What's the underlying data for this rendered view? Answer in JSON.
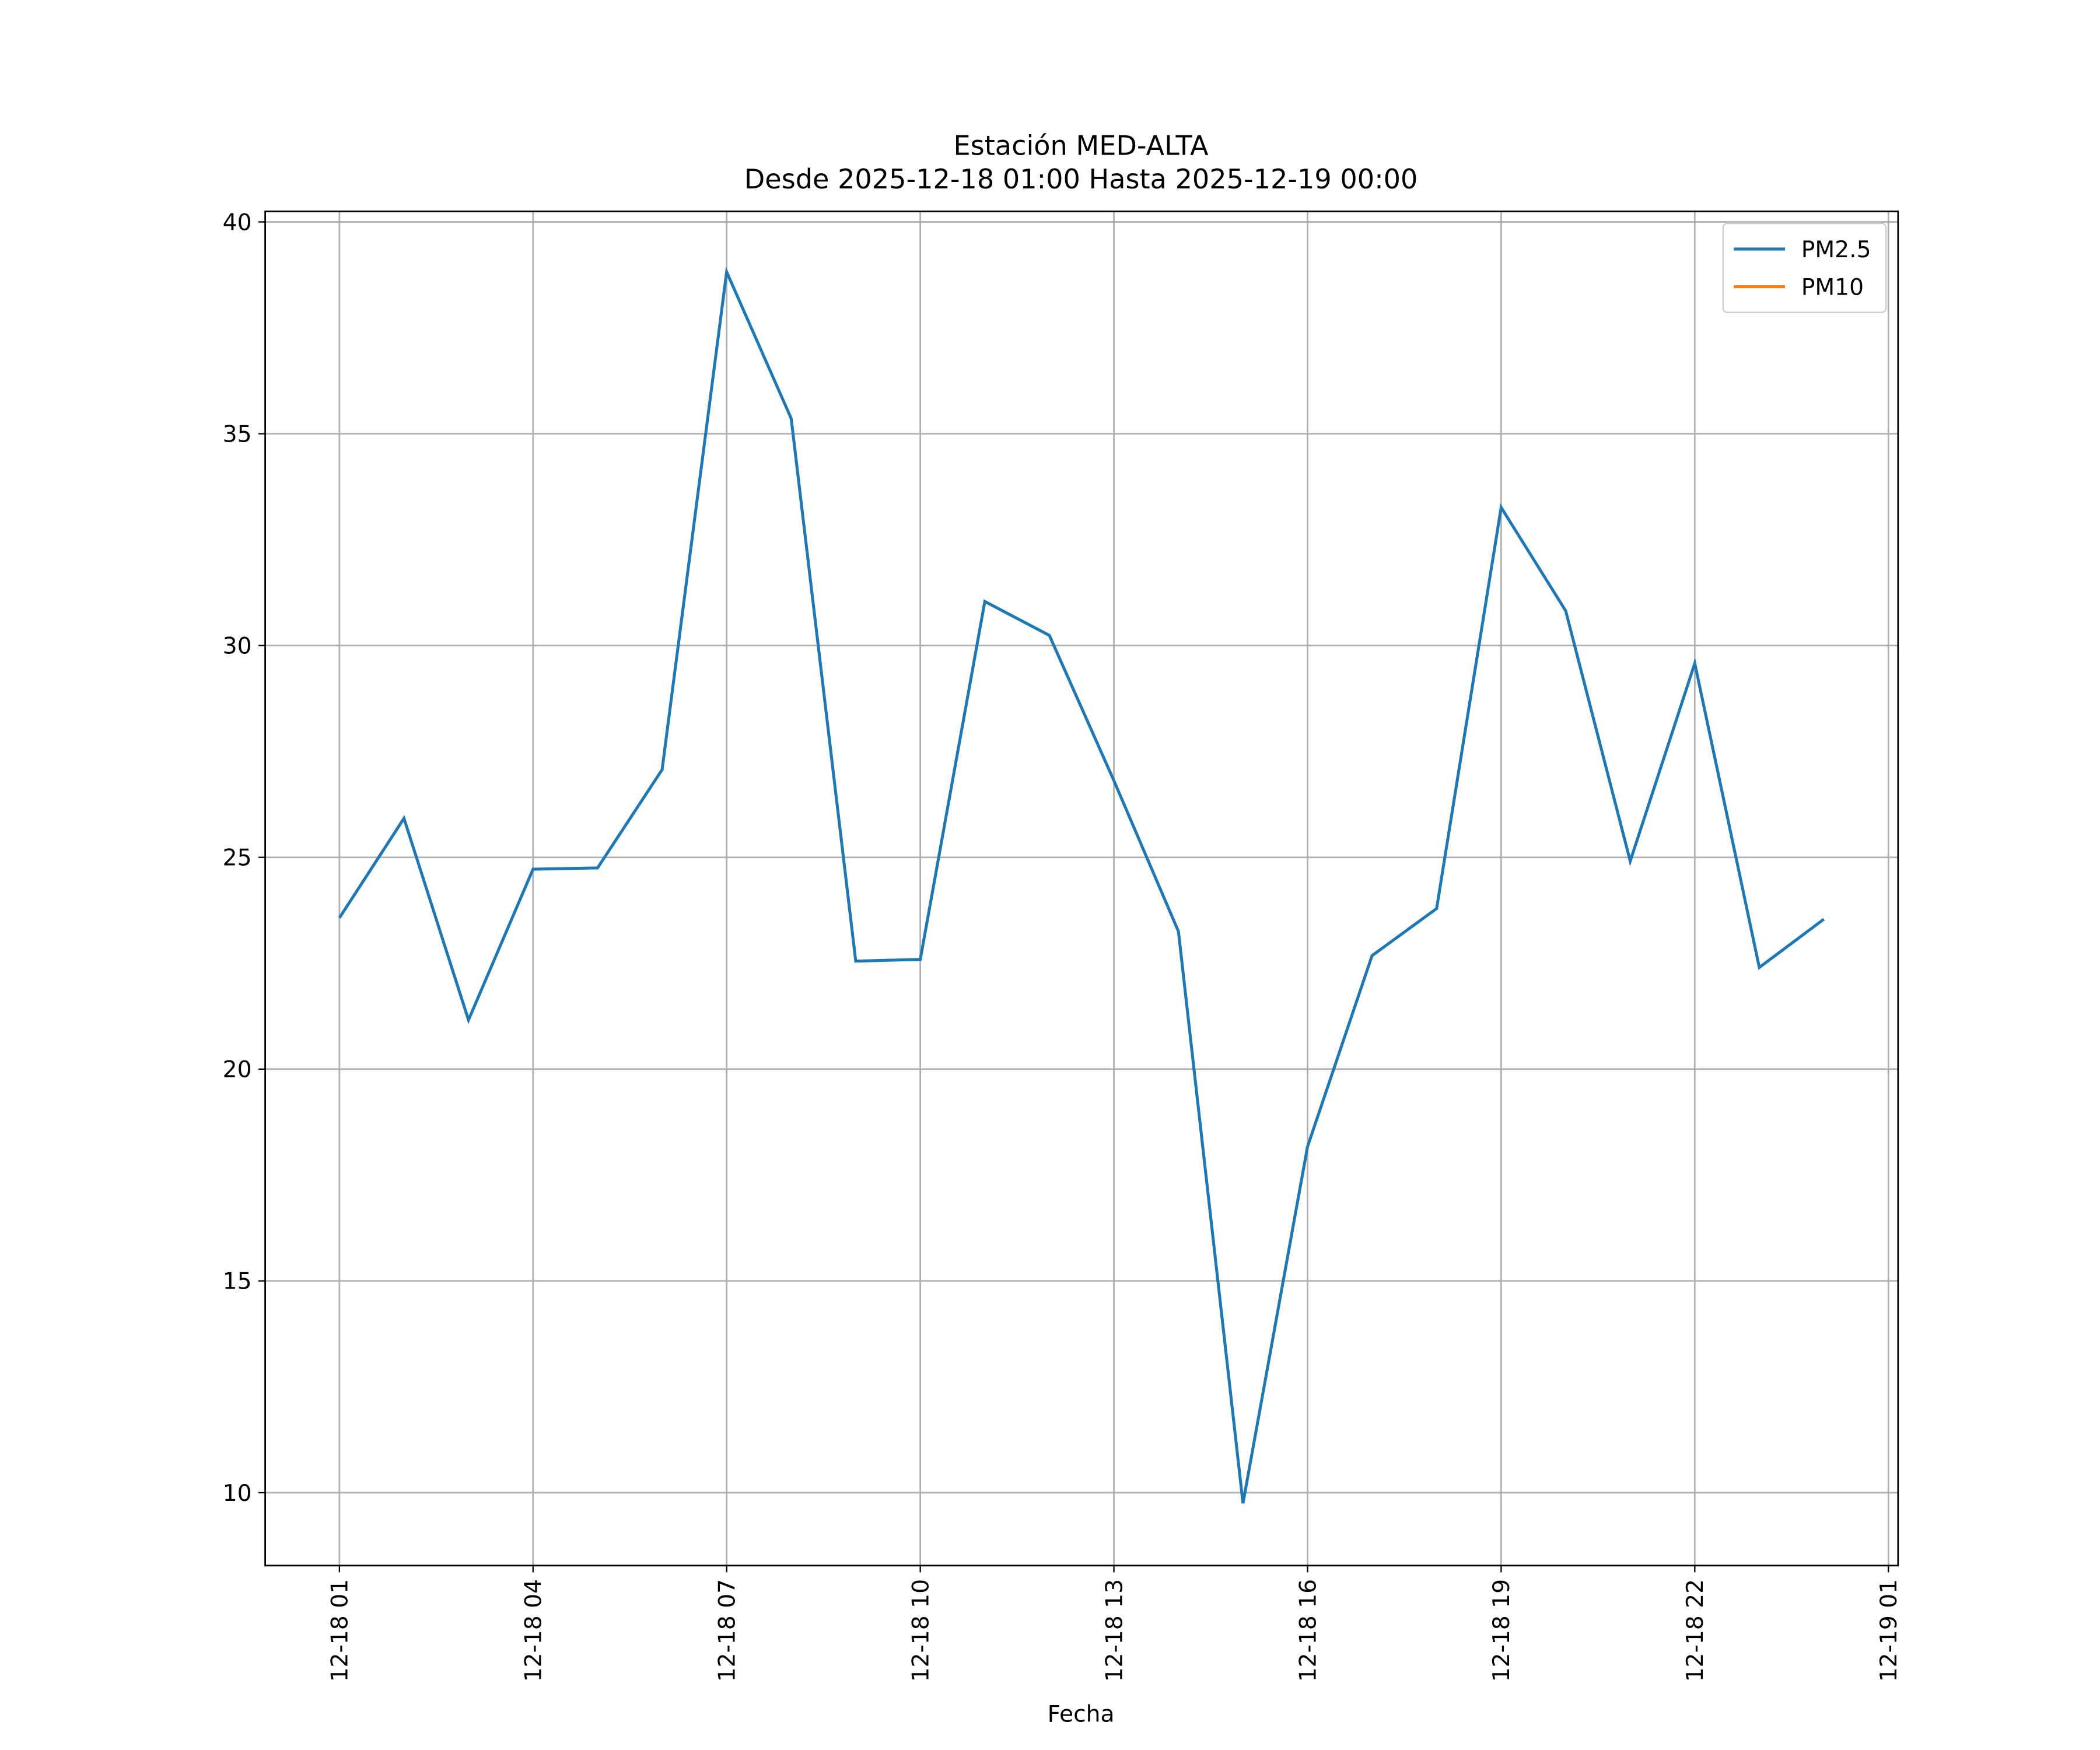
{
  "chart_data": {
    "type": "line",
    "title": "Estación MED-ALTA",
    "subtitle": "Desde 2025-12-18 01:00 Hasta 2025-12-19 00:00",
    "x_label": "Fecha",
    "x": [
      "12-18 01",
      "12-18 02",
      "12-18 03",
      "12-18 04",
      "12-18 05",
      "12-18 06",
      "12-18 07",
      "12-18 08",
      "12-18 09",
      "12-18 10",
      "12-18 11",
      "12-18 12",
      "12-18 13",
      "12-18 14",
      "12-18 15",
      "12-18 16",
      "12-18 17",
      "12-18 18",
      "12-18 19",
      "12-18 20",
      "12-18 21",
      "12-18 22",
      "12-18 23",
      "12-19 00"
    ],
    "series": [
      {
        "name": "PM2.5",
        "color": "#1f77b4",
        "values": [
          23.57,
          25.92,
          21.16,
          24.72,
          24.75,
          27.07,
          38.82,
          35.36,
          22.55,
          22.59,
          31.04,
          30.24,
          26.81,
          23.25,
          9.75,
          18.17,
          22.68,
          23.79,
          33.26,
          30.82,
          24.91,
          29.58,
          22.4,
          23.54
        ]
      },
      {
        "name": "PM10",
        "color": "#ff7f0e",
        "values": [
          null,
          null,
          null,
          null,
          null,
          null,
          null,
          null,
          null,
          null,
          null,
          null,
          null,
          null,
          null,
          null,
          null,
          null,
          null,
          null,
          null,
          null,
          null,
          null
        ]
      }
    ],
    "xlim": [
      "12-17 23:51",
      "12-19 01:09"
    ],
    "xticks": [
      "12-18 01",
      "12-18 04",
      "12-18 07",
      "12-18 10",
      "12-18 13",
      "12-18 16",
      "12-18 19",
      "12-18 22",
      "12-19 01"
    ],
    "ylim": [
      8.28,
      40.25
    ],
    "yticks": [
      10,
      15,
      20,
      25,
      30,
      35,
      40
    ],
    "grid": true,
    "legend": "upper right"
  }
}
